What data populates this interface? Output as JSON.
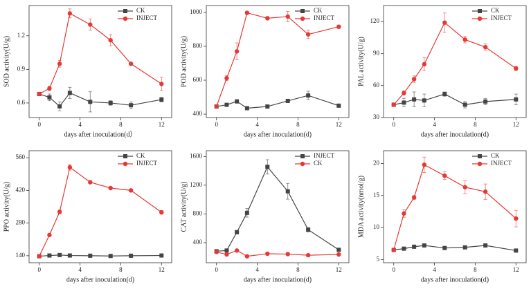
{
  "chart_data": [
    {
      "type": "line",
      "ylabel": "SOD activity(U/g)",
      "xlabel": "days after inoculation(d）",
      "x": [
        0,
        1,
        2,
        3,
        5,
        7,
        9,
        12
      ],
      "xlim": [
        -1,
        13
      ],
      "xticks": [
        0,
        4,
        8,
        12
      ],
      "ylim": [
        0.47,
        1.47
      ],
      "yticks": [
        0.6,
        0.9,
        1.2
      ],
      "series": [
        {
          "name": "CK",
          "color": "#444444",
          "marker": "square",
          "values": [
            0.68,
            0.65,
            0.57,
            0.69,
            0.61,
            0.6,
            0.58,
            0.63
          ],
          "errors": [
            0.01,
            0.03,
            0.04,
            0.05,
            0.09,
            0.02,
            0.03,
            0.02
          ]
        },
        {
          "name": "INJECT",
          "color": "#e53935",
          "marker": "circle",
          "values": [
            0.68,
            0.73,
            0.95,
            1.4,
            1.3,
            1.16,
            0.95,
            0.77
          ],
          "errors": [
            0.01,
            0.02,
            0.03,
            0.04,
            0.05,
            0.05,
            0.01,
            0.06
          ]
        }
      ]
    },
    {
      "type": "line",
      "ylabel": "POD activity(U/g)",
      "xlabel": "days after inoculation(d)",
      "x": [
        0,
        1,
        2,
        3,
        5,
        7,
        9,
        12
      ],
      "xlim": [
        -1,
        13
      ],
      "xticks": [
        0,
        4,
        8,
        12
      ],
      "ylim": [
        380,
        1040
      ],
      "yticks": [
        400,
        600,
        800,
        1000
      ],
      "series": [
        {
          "name": "CK",
          "color": "#444444",
          "marker": "square",
          "values": [
            445,
            455,
            475,
            435,
            445,
            478,
            510,
            450
          ],
          "errors": [
            5,
            8,
            10,
            8,
            5,
            10,
            25,
            8
          ]
        },
        {
          "name": "INJECT",
          "color": "#e53935",
          "marker": "circle",
          "values": [
            445,
            612,
            770,
            997,
            965,
            975,
            870,
            915
          ],
          "errors": [
            5,
            15,
            50,
            10,
            10,
            30,
            25,
            10
          ]
        }
      ]
    },
    {
      "type": "line",
      "ylabel": "PAL activity(U/g)",
      "xlabel": "days after inoculation(d)",
      "x": [
        0,
        1,
        2,
        3,
        5,
        7,
        9,
        12
      ],
      "xlim": [
        -1,
        13
      ],
      "xticks": [
        0,
        4,
        8,
        12
      ],
      "ylim": [
        30,
        135
      ],
      "yticks": [
        30,
        60,
        90,
        120
      ],
      "series": [
        {
          "name": "CK",
          "color": "#444444",
          "marker": "square",
          "values": [
            42,
            44,
            47,
            46,
            52,
            42,
            45,
            47
          ],
          "errors": [
            1,
            4,
            7,
            6,
            2,
            3,
            3,
            5
          ]
        },
        {
          "name": "INJECT",
          "color": "#e53935",
          "marker": "circle",
          "values": [
            42,
            53,
            66,
            80,
            119,
            103,
            96,
            76
          ],
          "errors": [
            1,
            2,
            3,
            6,
            9,
            3,
            3,
            2
          ]
        }
      ]
    },
    {
      "type": "line",
      "ylabel": "PPO activity(U/g)",
      "xlabel": "days after inoculation(d)",
      "x": [
        0,
        1,
        2,
        3,
        5,
        7,
        9,
        12
      ],
      "xlim": [
        -1,
        13
      ],
      "xticks": [
        0,
        4,
        8,
        12
      ],
      "ylim": [
        110,
        590
      ],
      "yticks": [
        140,
        280,
        420,
        560
      ],
      "series": [
        {
          "name": "CK",
          "color": "#444444",
          "marker": "square",
          "values": [
            138,
            141,
            143,
            141,
            140,
            139,
            140,
            141
          ],
          "errors": [
            2,
            3,
            4,
            2,
            2,
            2,
            2,
            2
          ]
        },
        {
          "name": "INJECT",
          "color": "#e53935",
          "marker": "circle",
          "values": [
            138,
            229,
            328,
            519,
            455,
            430,
            420,
            326
          ],
          "errors": [
            2,
            5,
            8,
            12,
            6,
            5,
            5,
            8
          ]
        }
      ]
    },
    {
      "type": "line",
      "ylabel": "CAT activity(U/g)",
      "xlabel": "days after inoculation(d)",
      "x": [
        0,
        1,
        2,
        3,
        5,
        7,
        9,
        12
      ],
      "xlim": [
        -1,
        13
      ],
      "xticks": [
        0,
        4,
        8,
        12
      ],
      "ylim": [
        120,
        1680
      ],
      "yticks": [
        400,
        800,
        1200,
        1600
      ],
      "series": [
        {
          "name": "INJECT",
          "color": "#444444",
          "marker": "square",
          "values": [
            280,
            290,
            545,
            815,
            1455,
            1115,
            580,
            300
          ],
          "errors": [
            10,
            15,
            20,
            60,
            100,
            110,
            30,
            15
          ]
        },
        {
          "name": "CK",
          "color": "#e53935",
          "marker": "circle",
          "values": [
            270,
            235,
            290,
            210,
            245,
            240,
            225,
            235
          ],
          "errors": [
            10,
            10,
            15,
            10,
            10,
            10,
            10,
            10
          ]
        }
      ]
    },
    {
      "type": "line",
      "ylabel": "MDA activity(nmol/g)",
      "xlabel": "days after inoculation(d)",
      "x": [
        0,
        1,
        2,
        3,
        5,
        7,
        9,
        12
      ],
      "xlim": [
        -1,
        13
      ],
      "xticks": [
        0,
        4,
        8,
        12
      ],
      "ylim": [
        4.5,
        22
      ],
      "yticks": [
        5,
        10,
        15,
        20
      ],
      "series": [
        {
          "name": "CK",
          "color": "#444444",
          "marker": "square",
          "values": [
            6.5,
            6.7,
            7.0,
            7.2,
            6.8,
            6.9,
            7.2,
            6.4
          ],
          "errors": [
            0.1,
            0.1,
            0.2,
            0.1,
            0.1,
            0.1,
            0.1,
            0.1
          ]
        },
        {
          "name": "INJECT",
          "color": "#e53935",
          "marker": "circle",
          "values": [
            6.5,
            12.2,
            14.7,
            19.8,
            18.1,
            16.3,
            15.6,
            11.4
          ],
          "errors": [
            0.1,
            0.6,
            0.3,
            1.2,
            0.6,
            1.0,
            1.2,
            1.3
          ]
        }
      ]
    }
  ]
}
